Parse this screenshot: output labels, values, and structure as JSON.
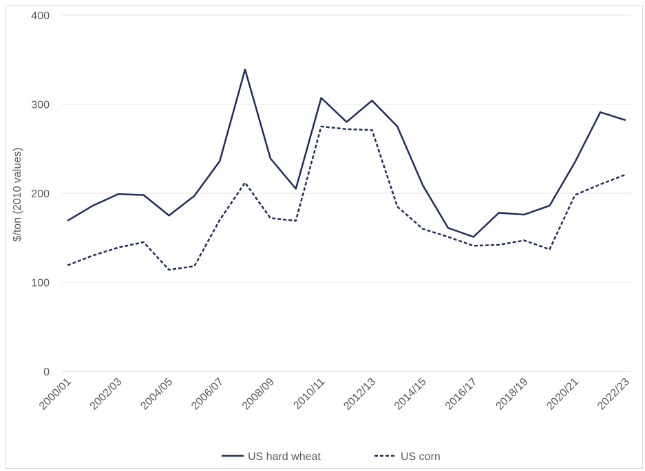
{
  "chart_data": {
    "type": "line",
    "title": "",
    "xlabel": "",
    "ylabel": "$/ton (2010 values)",
    "ylim": [
      0,
      400
    ],
    "yticks": [
      0,
      100,
      200,
      300,
      400
    ],
    "grid": "horizontal",
    "legend_position": "bottom",
    "x": [
      "2000/01",
      "2001/02",
      "2002/03",
      "2003/04",
      "2004/05",
      "2005/06",
      "2006/07",
      "2007/08",
      "2008/09",
      "2009/10",
      "2010/11",
      "2011/12",
      "2012/13",
      "2013/14",
      "2014/15",
      "2015/16",
      "2016/17",
      "2017/18",
      "2018/19",
      "2019/20",
      "2020/21",
      "2021/22",
      "2022/23"
    ],
    "x_tick_labels": [
      "2000/01",
      "2002/03",
      "2004/05",
      "2006/07",
      "2008/09",
      "2010/11",
      "2012/13",
      "2014/15",
      "2016/17",
      "2018/19",
      "2020/21",
      "2022/23"
    ],
    "series": [
      {
        "name": "US hard wheat",
        "style": "solid",
        "color": "#1f2d5c",
        "values": [
          169,
          186,
          199,
          198,
          175,
          197,
          236,
          339,
          239,
          205,
          307,
          280,
          304,
          275,
          209,
          161,
          151,
          178,
          176,
          186,
          235,
          291,
          282
        ]
      },
      {
        "name": "US corn",
        "style": "dashed",
        "color": "#1f2d5c",
        "values": [
          119,
          130,
          139,
          145,
          114,
          118,
          170,
          212,
          172,
          169,
          275,
          272,
          271,
          185,
          160,
          151,
          141,
          142,
          147,
          137,
          198,
          210,
          221
        ]
      }
    ]
  }
}
